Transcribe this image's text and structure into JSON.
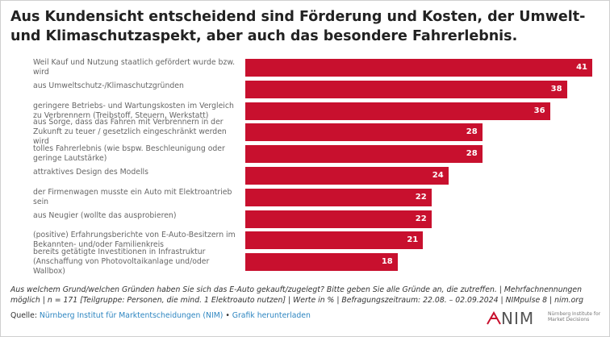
{
  "chart_data": {
    "type": "bar",
    "orientation": "horizontal",
    "title": "Aus Kundensicht entscheidend sind Förderung und Kosten, der Umwelt- und Klimaschutzaspekt, aber auch das besondere Fahrerlebnis.",
    "categories": [
      "Weil Kauf und Nutzung staatlich gefördert wurde bzw. wird",
      "aus Umweltschutz-/Klimaschutzgründen",
      "geringere Betriebs- und Wartungskosten im Vergleich zu Verbrennern (Treibstoff, Steuern, Werkstatt)",
      "aus Sorge, dass das Fahren mit Verbrennern in der Zukunft zu teuer / gesetzlich eingeschränkt werden wird",
      "tolles Fahrerlebnis (wie bspw. Beschleunigung oder geringe Lautstärke)",
      "attraktives Design des Modells",
      "der Firmenwagen musste ein Auto mit Elektroantrieb sein",
      "aus Neugier (wollte das ausprobieren)",
      "(positive) Erfahrungsberichte von E-Auto-Besitzern im Bekannten- und/oder Familienkreis",
      "bereits getätigte Investitionen in Infrastruktur (Anschaffung von Photovoltaikanlage und/oder Wallbox)"
    ],
    "values": [
      41,
      38,
      36,
      28,
      28,
      24,
      22,
      22,
      21,
      18
    ],
    "color": "#c8102e",
    "footnote": "Aus welchem Grund/welchen Gründen haben Sie sich das E-Auto gekauft/zugelegt? Bitte geben Sie alle Gründe an, die zutreffen. | Mehrfachnennungen möglich | n = 171 [Teilgruppe: Personen, die mind. 1 Elektroauto nutzen] | Werte in % | Befragungszeitraum: 22.08. – 02.09.2024 | NIMpulse 8 | nim.org",
    "source_label": "Quelle:",
    "source_link": "Nürnberg Institut für Marktentscheidungen (NIM)",
    "separator": "•",
    "download_link": "Grafik herunterladen",
    "logo": "NIM",
    "logo_text": "Nürnberg Institute for Market Decisions"
  }
}
